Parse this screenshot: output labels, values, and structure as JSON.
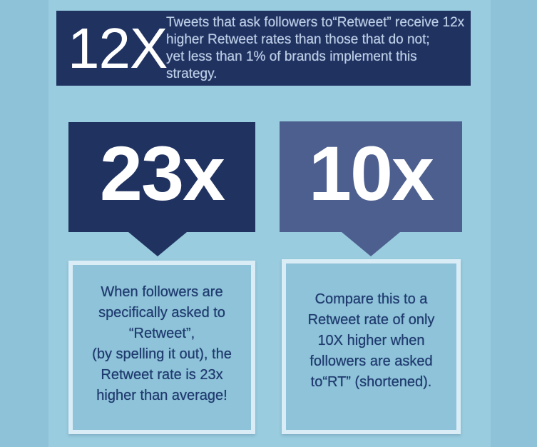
{
  "colors": {
    "background": "#8dc2d8",
    "panel": "#9accdf",
    "navy": "#203260",
    "slate": "#4d5f8e",
    "box_background": "#8ec3d9",
    "box_border": "#daedf7",
    "box_text": "#1f3a6e",
    "banner_text": "#bccde6",
    "stat_text": "#ffffff"
  },
  "banner": {
    "stat": "12X",
    "text": "Tweets that ask followers to“Retweet” receive 12x\nhigher Retweet rates than those that do not;\nyet less than 1% of brands implement this strategy."
  },
  "callouts": [
    {
      "stat": "23x",
      "note": "When followers are\nspecifically asked to\n“Retweet”,\n(by spelling it out), the\nRetweet rate is 23x\nhigher than average!"
    },
    {
      "stat": "10x",
      "note": "Compare this to a\nRetweet rate of only\n10X higher when\nfollowers are asked\nto“RT” (shortened)."
    }
  ]
}
